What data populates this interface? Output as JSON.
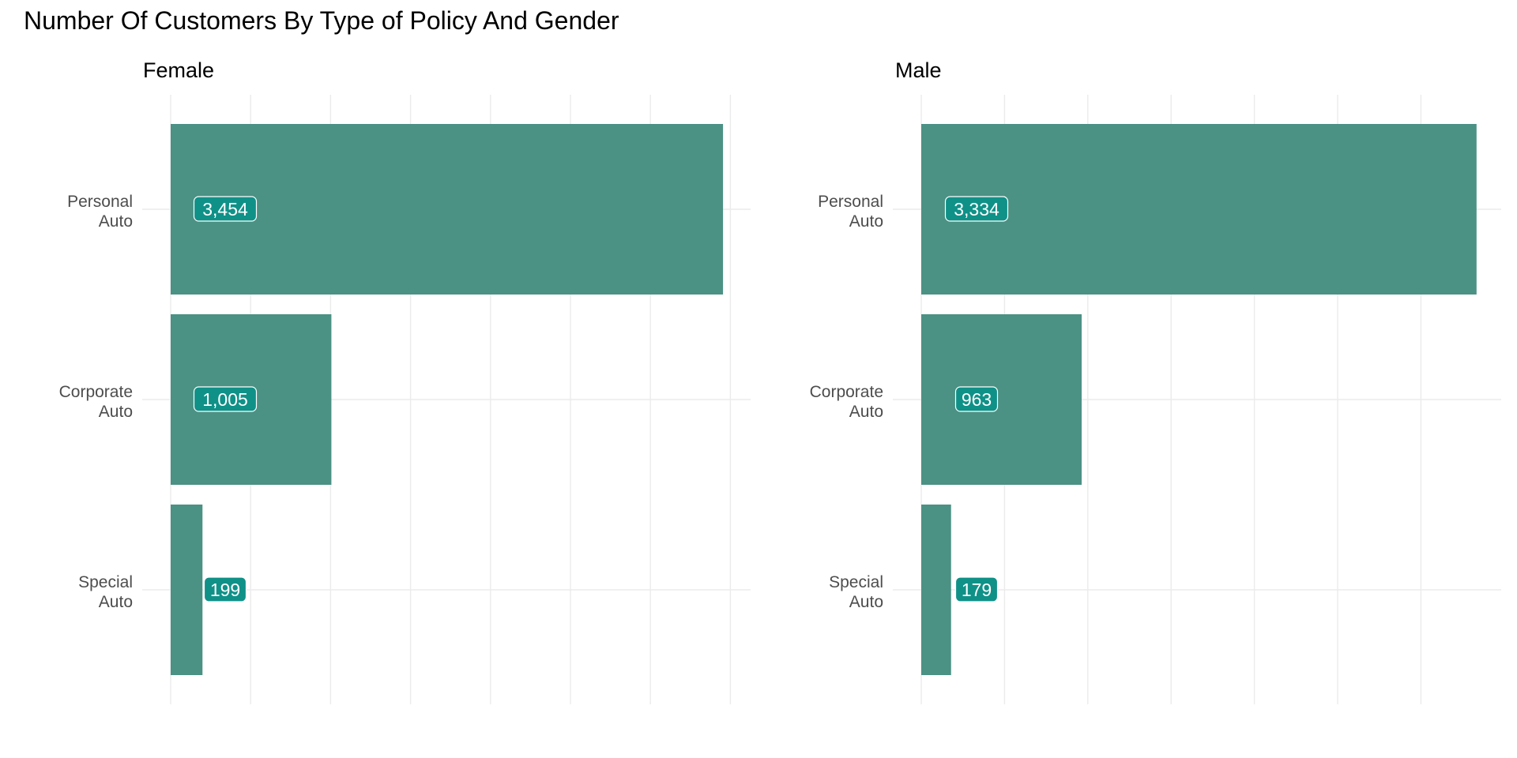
{
  "chart_data": {
    "type": "bar",
    "orientation": "horizontal",
    "title": "Number Of Customers By Type of Policy And Gender",
    "xlabel": "",
    "ylabel": "",
    "grid": true,
    "categories": [
      [
        "Personal",
        "Auto"
      ],
      [
        "Corporate",
        "Auto"
      ],
      [
        "Special",
        "Auto"
      ]
    ],
    "panels": [
      {
        "name": "Female",
        "values": [
          3454,
          1005,
          199
        ],
        "labels": [
          "3,454",
          "1,005",
          "199"
        ]
      },
      {
        "name": "Male",
        "values": [
          3334,
          963,
          179
        ],
        "labels": [
          "3,334",
          "963",
          "179"
        ]
      }
    ],
    "colors": {
      "bar": "#4b9184",
      "label_fill": "#0f9188",
      "grid": "#ebebeb"
    }
  }
}
